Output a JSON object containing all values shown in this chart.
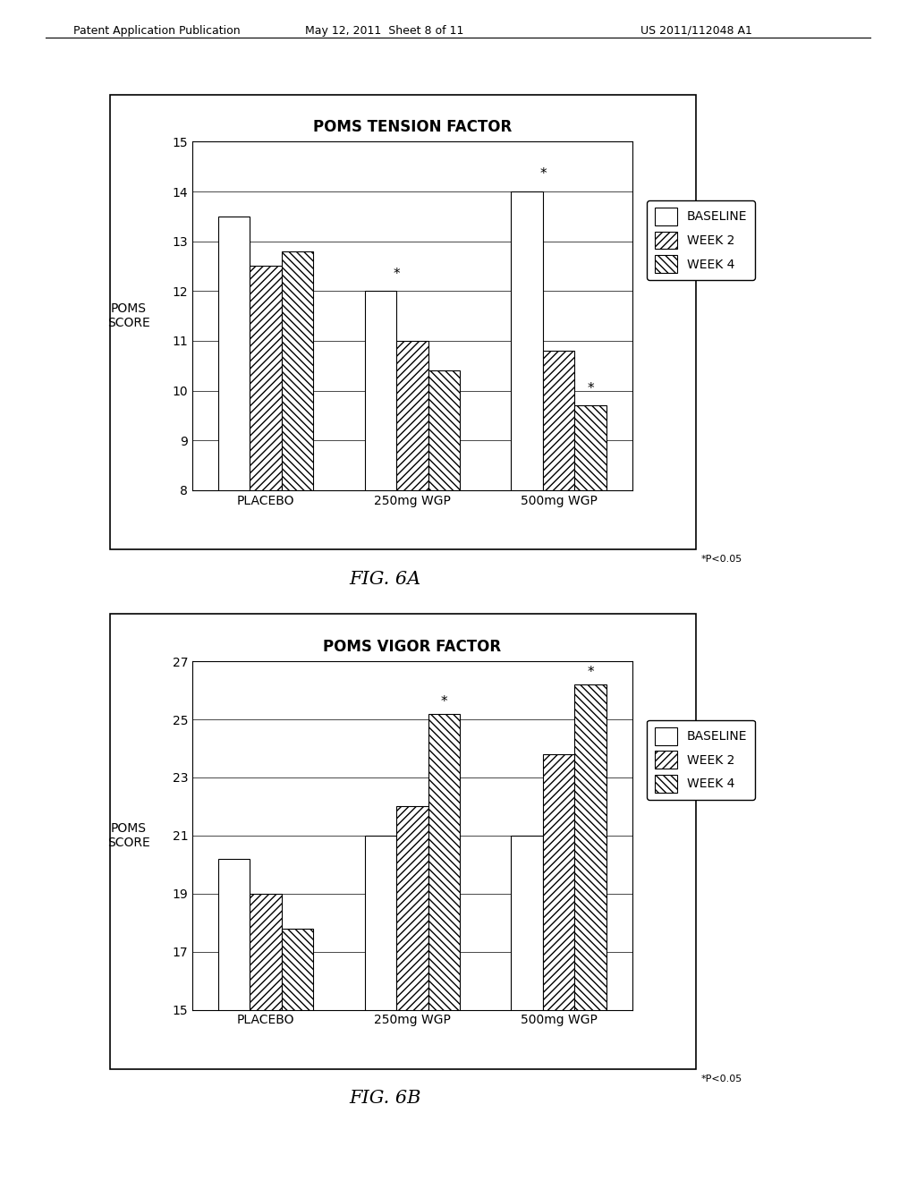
{
  "fig6a": {
    "title": "POMS TENSION FACTOR",
    "ylabel": "POMS\nSCORE",
    "xlabel_groups": [
      "PLACEBO",
      "250mg WGP",
      "500mg WGP"
    ],
    "ylim": [
      8,
      15
    ],
    "yticks": [
      8,
      9,
      10,
      11,
      12,
      13,
      14,
      15
    ],
    "baseline": [
      13.5,
      12.0,
      14.0
    ],
    "week2": [
      12.5,
      11.0,
      10.8
    ],
    "week4": [
      12.8,
      10.4,
      9.7
    ],
    "star_baseline": [
      false,
      false,
      false
    ],
    "star_week2": [
      false,
      false,
      false
    ],
    "star_week4": [
      false,
      false,
      false
    ],
    "star_between_bl_w2": [
      false,
      true,
      true
    ],
    "star_between_w3_w4": [
      false,
      false,
      true
    ]
  },
  "fig6b": {
    "title": "POMS VIGOR FACTOR",
    "ylabel": "POMS\nSCORE",
    "xlabel_groups": [
      "PLACEBO",
      "250mg WGP",
      "500mg WGP"
    ],
    "ylim": [
      15,
      27
    ],
    "yticks": [
      15,
      17,
      19,
      21,
      23,
      25,
      27
    ],
    "baseline": [
      20.2,
      21.0,
      21.0
    ],
    "week2": [
      19.0,
      22.0,
      23.8
    ],
    "week4": [
      17.8,
      25.2,
      26.2
    ],
    "star_baseline": [
      false,
      false,
      false
    ],
    "star_week2": [
      false,
      false,
      false
    ],
    "star_week4": [
      false,
      true,
      true
    ],
    "star_between_bl_w2": [
      false,
      false,
      false
    ],
    "star_between_w3_w4": [
      false,
      false,
      false
    ]
  },
  "legend_labels": [
    "BASELINE",
    "WEEK 2",
    "WEEK 4"
  ],
  "fig6a_label": "FIG. 6A",
  "fig6b_label": "FIG. 6B",
  "pvalue_note": "*P<0.05",
  "background_color": "#ffffff"
}
